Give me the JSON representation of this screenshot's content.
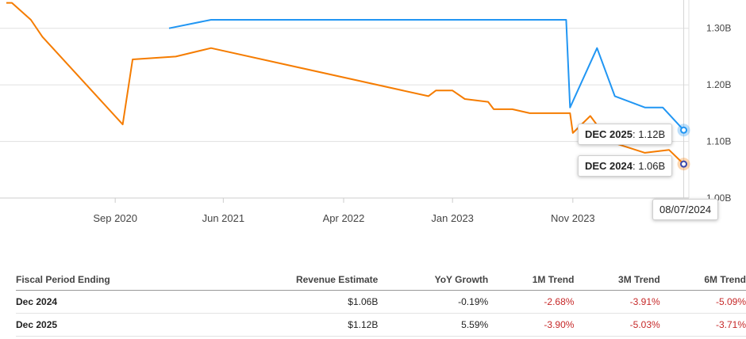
{
  "chart_data": {
    "type": "line",
    "x_ticks": [
      "Sep 2020",
      "Jun 2021",
      "Apr 2022",
      "Jan 2023",
      "Nov 2023"
    ],
    "y_ticks": [
      "1.30B",
      "1.20B",
      "1.10B",
      "1.00B"
    ],
    "ylim": [
      1.0,
      1.35
    ],
    "xlim": [
      "2019-11-15",
      "2024-08-20"
    ],
    "grid": true,
    "colors": {
      "dec2025": "#2196f3",
      "dec2024": "#f57c00"
    },
    "series": [
      {
        "key": "dec2025",
        "x": [
          "2021-01-15",
          "2021-05-01",
          "2023-10-15",
          "2023-10-25",
          "2024-01-01",
          "2024-02-15",
          "2024-05-01",
          "2024-06-15",
          "2024-08-07"
        ],
        "y": [
          1.3,
          1.315,
          1.315,
          1.16,
          1.265,
          1.18,
          1.16,
          1.16,
          1.12
        ]
      },
      {
        "key": "dec2024",
        "x": [
          "2019-12-01",
          "2019-12-15",
          "2020-02-01",
          "2020-03-01",
          "2020-09-20",
          "2020-10-15",
          "2021-02-01",
          "2021-05-01",
          "2022-11-01",
          "2022-11-20",
          "2023-01-01",
          "2023-02-01",
          "2023-04-01",
          "2023-04-15",
          "2023-06-01",
          "2023-07-15",
          "2023-10-25",
          "2023-11-01",
          "2023-12-15",
          "2024-02-01",
          "2024-05-01",
          "2024-07-01",
          "2024-08-07"
        ],
        "y": [
          1.345,
          1.345,
          1.315,
          1.285,
          1.13,
          1.245,
          1.25,
          1.265,
          1.18,
          1.19,
          1.19,
          1.175,
          1.17,
          1.157,
          1.157,
          1.15,
          1.15,
          1.115,
          1.145,
          1.1,
          1.08,
          1.085,
          1.06
        ]
      }
    ],
    "tooltips": [
      {
        "label": "DEC 2025",
        "value": "1.12B"
      },
      {
        "label": "DEC 2024",
        "value": "1.06B"
      }
    ],
    "date_label": "08/07/2024"
  },
  "table": {
    "headers": [
      "Fiscal Period Ending",
      "Revenue Estimate",
      "YoY Growth",
      "1M Trend",
      "3M Trend",
      "6M Trend"
    ],
    "rows": [
      [
        "Dec 2024",
        "$1.06B",
        "-0.19%",
        "-2.68%",
        "-3.91%",
        "-5.09%"
      ],
      [
        "Dec 2025",
        "$1.12B",
        "5.59%",
        "-3.90%",
        "-5.03%",
        "-3.71%"
      ]
    ]
  }
}
